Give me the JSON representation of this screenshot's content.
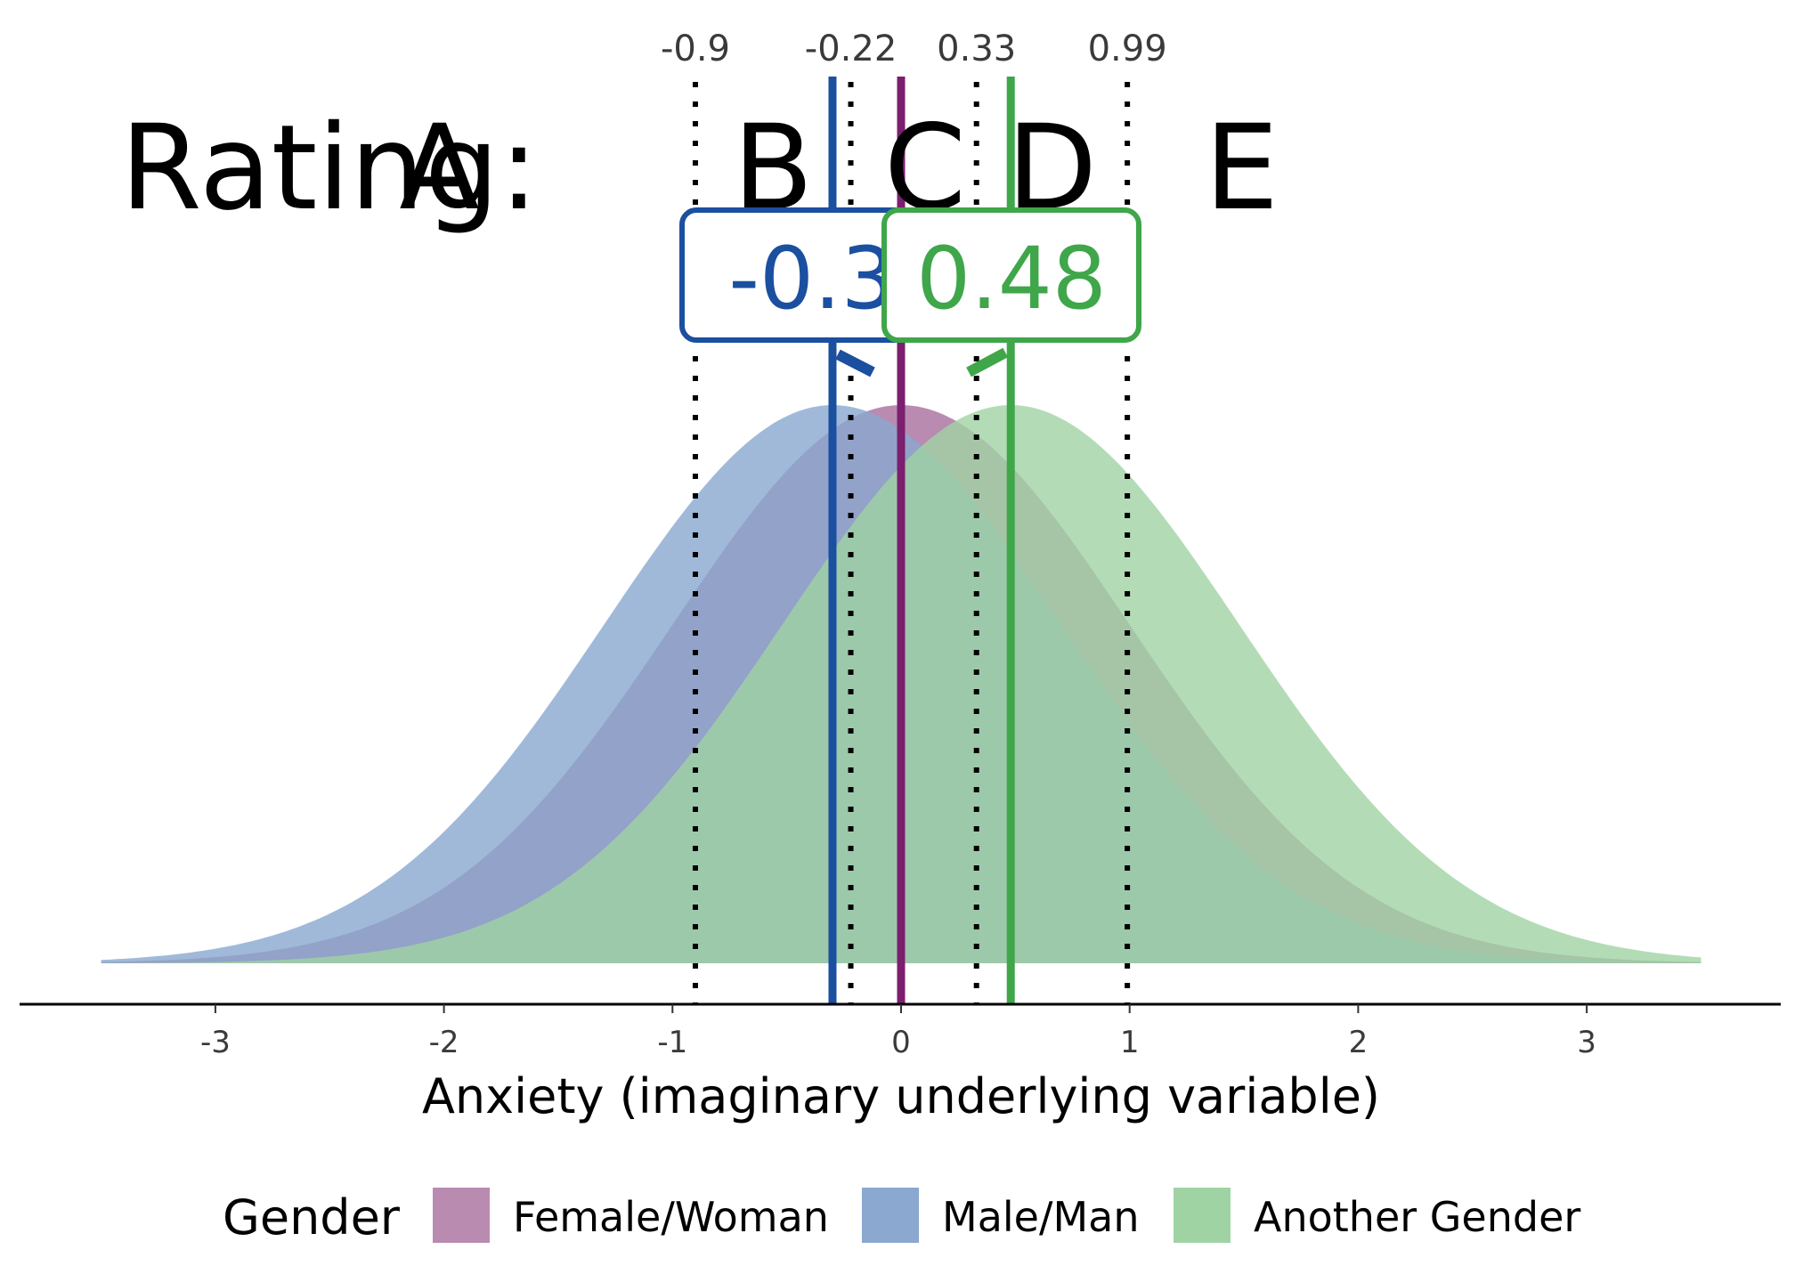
{
  "chart_data": {
    "type": "area",
    "title": "",
    "xlabel": "Anxiety (imaginary underlying variable)",
    "ylabel": "",
    "xlim": [
      -3.5,
      3.5
    ],
    "x_ticks": [
      "-3",
      "-2",
      "-1",
      "0",
      "1",
      "2",
      "3"
    ],
    "series": [
      {
        "name": "Female/Woman",
        "mean": 0,
        "sd": 1,
        "color": "#b98bb1",
        "line_color": "#7b1f6e"
      },
      {
        "name": "Male/Man",
        "mean": -0.3,
        "sd": 1,
        "color": "#8aa8d0",
        "line_color": "#1b4fa0"
      },
      {
        "name": "Another Gender",
        "mean": 0.48,
        "sd": 1,
        "color": "#a0d3a4",
        "line_color": "#3fa64a"
      }
    ],
    "thresholds": [
      {
        "value": -0.9,
        "label": "-0.9"
      },
      {
        "value": -0.22,
        "label": "-0.22"
      },
      {
        "value": 0.33,
        "label": "0.33"
      },
      {
        "value": 0.99,
        "label": "0.99"
      }
    ],
    "rating": {
      "prefix": "Rating:",
      "categories": [
        "A",
        "B",
        "C",
        "D",
        "E"
      ]
    },
    "badges": [
      {
        "series": "Male/Man",
        "text": "-0.3",
        "color": "#1b4fa0"
      },
      {
        "series": "Another Gender",
        "text": "0.48",
        "color": "#3fa64a"
      }
    ],
    "legend": {
      "title": "Gender",
      "position": "bottom",
      "entries": [
        "Female/Woman",
        "Male/Man",
        "Another Gender"
      ]
    }
  }
}
